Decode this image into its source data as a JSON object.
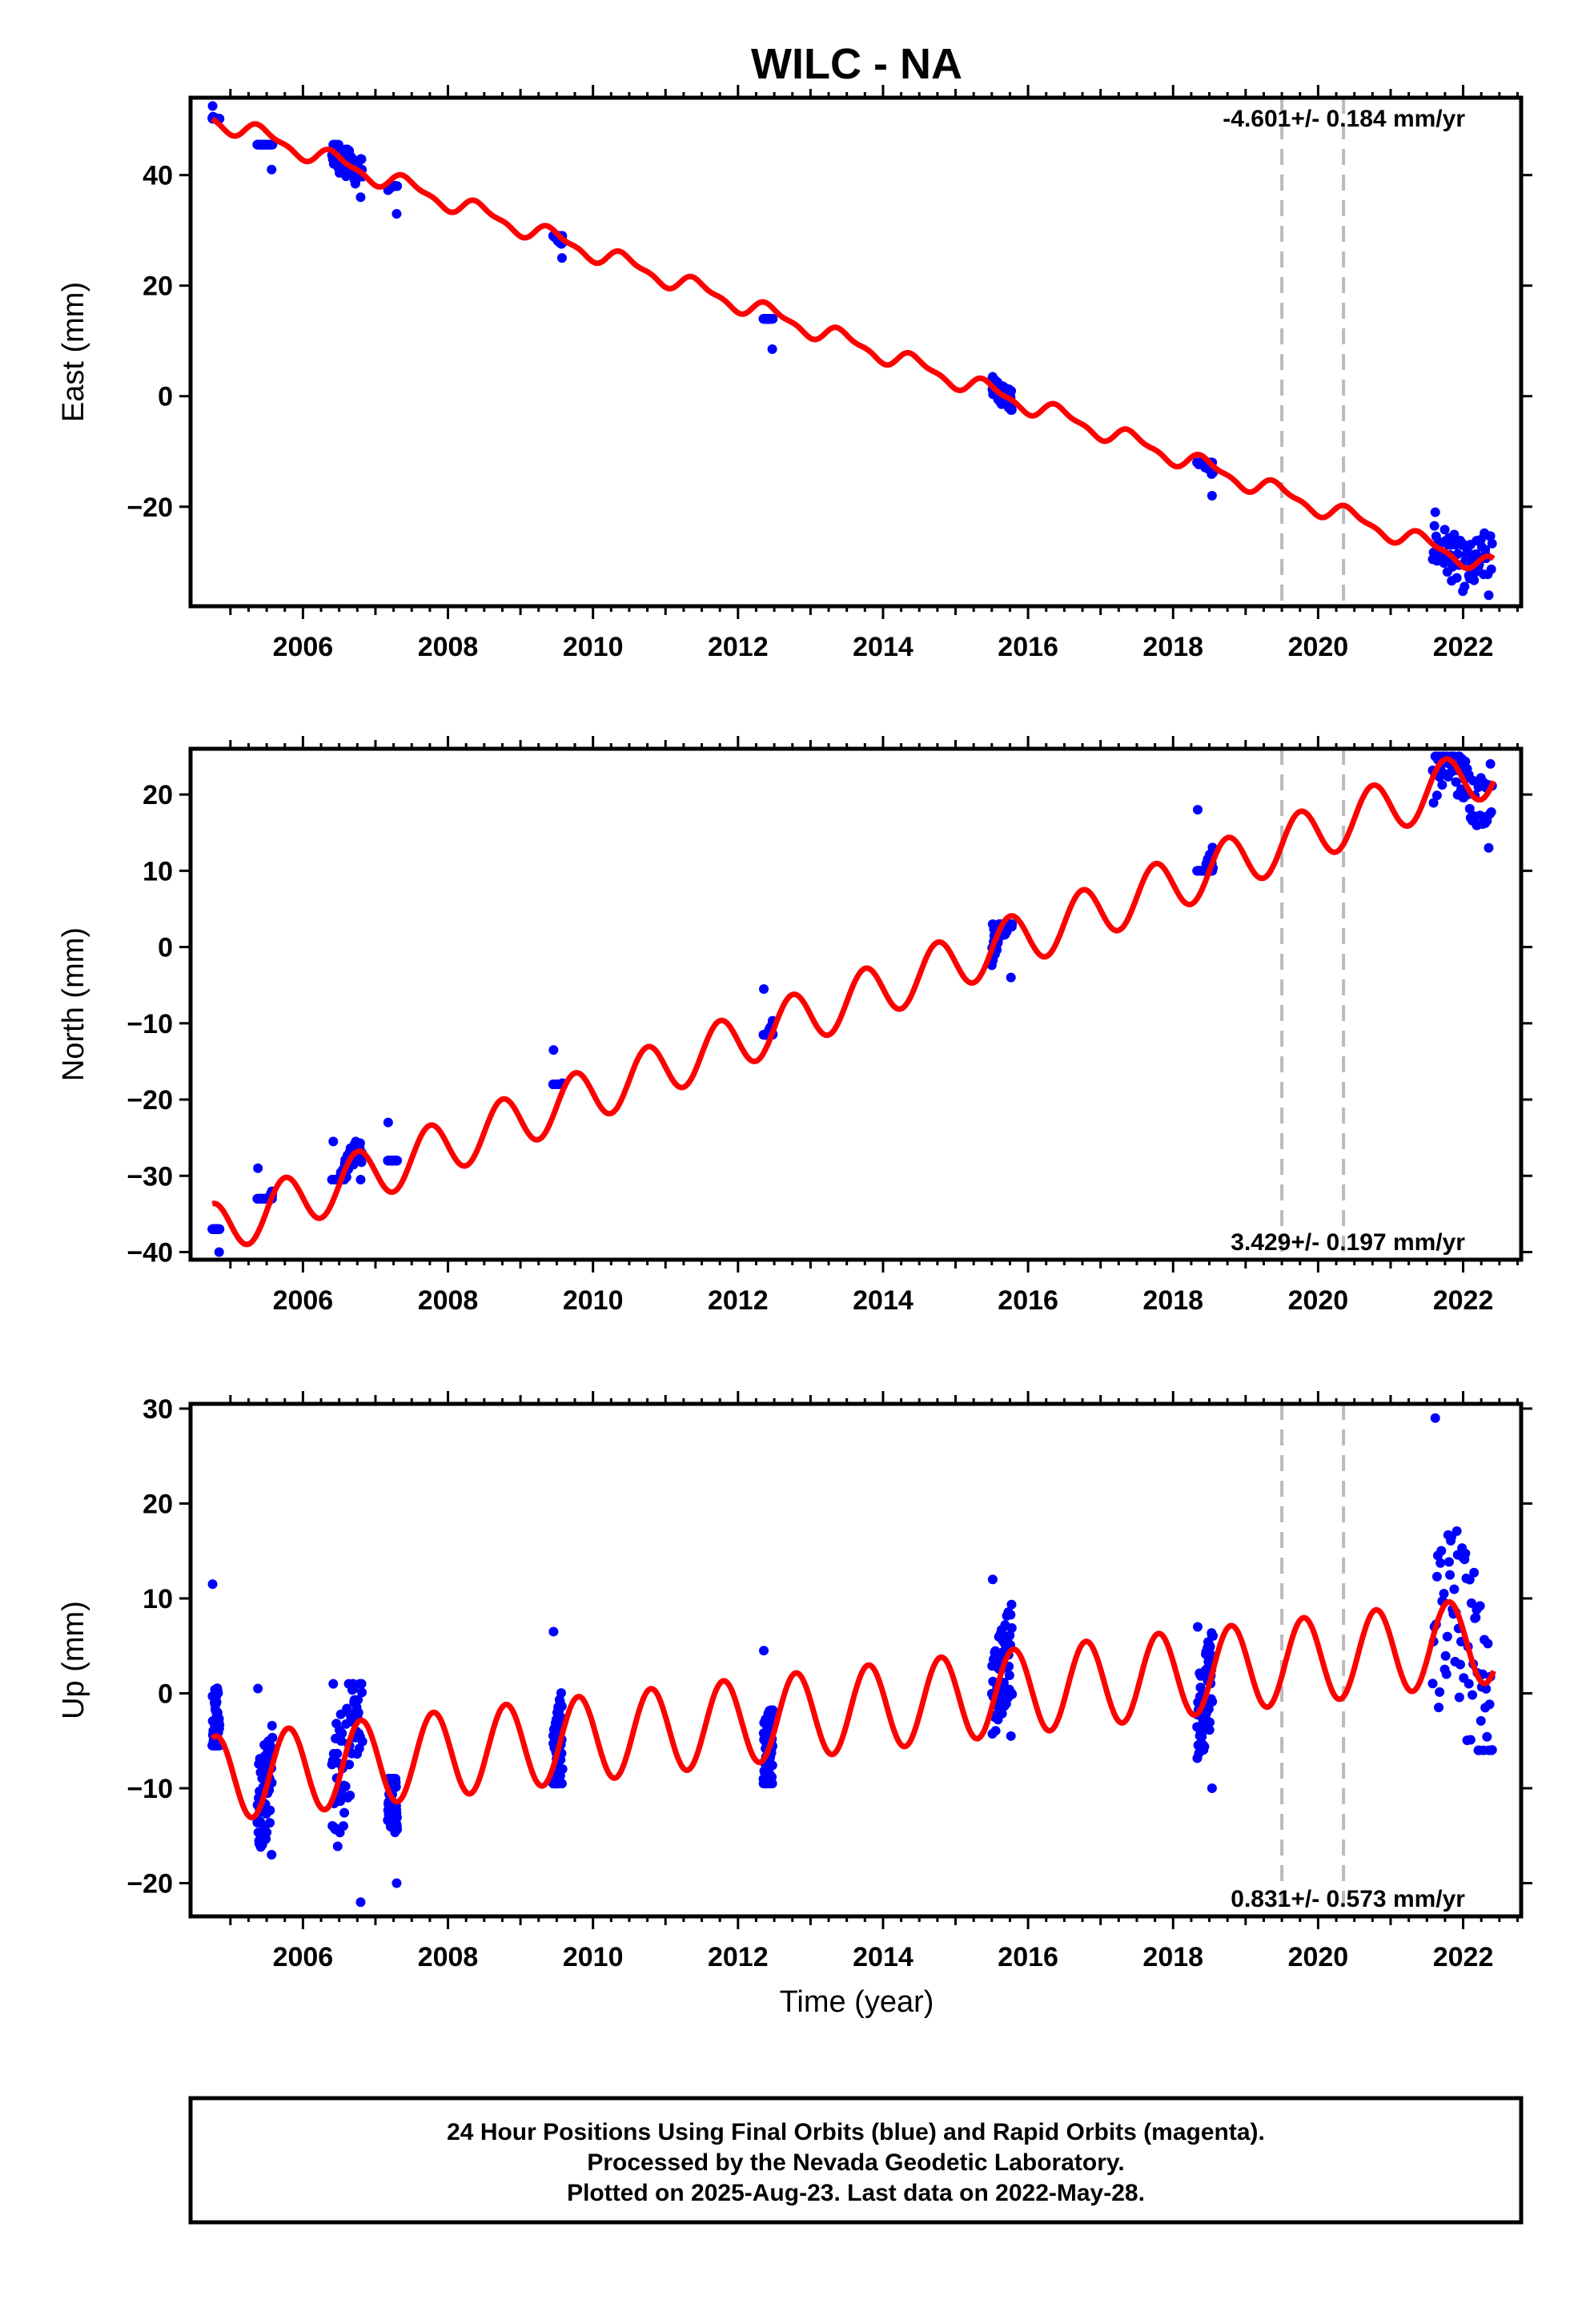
{
  "title": "WILC - NA",
  "x_axis_title": "Time (year)",
  "x_ticks": [
    2006,
    2008,
    2010,
    2012,
    2014,
    2016,
    2018,
    2020,
    2022
  ],
  "xlim": [
    2004.45,
    2022.8
  ],
  "footer": {
    "line1": "24 Hour Positions Using Final Orbits (blue) and Rapid Orbits (magenta).",
    "line2": "Processed by the Nevada Geodetic Laboratory.",
    "line3": "Plotted on 2025-Aug-23. Last data on 2022-May-28."
  },
  "colors": {
    "data": "#0000ff",
    "model": "#ff0000",
    "step": "#bbbbbb",
    "axis": "#000000"
  },
  "chart_data": [
    {
      "type": "scatter",
      "name": "east",
      "ylabel": "East (mm)",
      "rate_label": "-4.601+/- 0.184 mm/yr",
      "rate_position": "top-right",
      "ylim": [
        -38,
        54
      ],
      "yticks": [
        -20,
        0,
        20,
        40
      ],
      "xlim": [
        2004.45,
        2022.8
      ],
      "grid": false,
      "rate_mm_yr": -4.601,
      "offset_mm": 50.0,
      "annual_amplitude_mm": 1.5,
      "annual_phase_year": 0.2,
      "semiannual_amplitude_mm": 0.6,
      "step_epochs": [
        2019.5,
        2020.35
      ],
      "campaigns": [
        {
          "start": 2004.75,
          "end": 2004.85,
          "values": [
            52.5,
            50.2
          ]
        },
        {
          "start": 2005.37,
          "end": 2005.58,
          "values": [
            45.5,
            41.0
          ]
        },
        {
          "start": 2006.4,
          "end": 2006.82,
          "values": [
            45.5,
            36.0
          ]
        },
        {
          "start": 2007.17,
          "end": 2007.3,
          "values": [
            38.0,
            33.0
          ]
        },
        {
          "start": 2009.45,
          "end": 2009.58,
          "values": [
            29.0,
            25.0
          ]
        },
        {
          "start": 2012.35,
          "end": 2012.48,
          "values": [
            14.0,
            8.5
          ]
        },
        {
          "start": 2015.5,
          "end": 2015.78,
          "values": [
            3.5,
            -2.5
          ]
        },
        {
          "start": 2018.33,
          "end": 2018.55,
          "values": [
            -12.0,
            -18.0
          ]
        },
        {
          "start": 2021.58,
          "end": 2022.4,
          "values": [
            -21.0,
            -36.0
          ]
        }
      ]
    },
    {
      "type": "scatter",
      "name": "north",
      "ylabel": "North (mm)",
      "rate_label": "3.429+/- 0.197 mm/yr",
      "rate_position": "bottom-right",
      "ylim": [
        -41,
        26
      ],
      "yticks": [
        -40,
        -30,
        -20,
        -10,
        0,
        10,
        20
      ],
      "xlim": [
        2004.45,
        2022.8
      ],
      "grid": false,
      "rate_mm_yr": 3.429,
      "offset_mm": -37.0,
      "annual_amplitude_mm": 3.5,
      "annual_phase_year": 0.5,
      "semiannual_amplitude_mm": 0.0,
      "step_epochs": [
        2019.5,
        2020.35
      ],
      "campaigns": [
        {
          "start": 2004.75,
          "end": 2004.85,
          "values": [
            -37.0,
            -40.0
          ]
        },
        {
          "start": 2005.37,
          "end": 2005.58,
          "values": [
            -29.0,
            -33.0
          ]
        },
        {
          "start": 2006.4,
          "end": 2006.82,
          "values": [
            -25.5,
            -30.5
          ]
        },
        {
          "start": 2007.17,
          "end": 2007.3,
          "values": [
            -23.0,
            -28.0
          ]
        },
        {
          "start": 2009.45,
          "end": 2009.58,
          "values": [
            -13.5,
            -18.0
          ]
        },
        {
          "start": 2012.35,
          "end": 2012.48,
          "values": [
            -5.5,
            -11.5
          ]
        },
        {
          "start": 2015.5,
          "end": 2015.78,
          "values": [
            3.0,
            -4.0
          ]
        },
        {
          "start": 2018.33,
          "end": 2018.55,
          "values": [
            18.0,
            10.0
          ]
        },
        {
          "start": 2021.58,
          "end": 2022.4,
          "values": [
            25.0,
            13.0
          ]
        }
      ]
    },
    {
      "type": "scatter",
      "name": "up",
      "ylabel": "Up (mm)",
      "rate_label": "0.831+/- 0.573 mm/yr",
      "rate_position": "bottom-right",
      "ylim": [
        -23.5,
        30.5
      ],
      "yticks": [
        -20,
        -10,
        0,
        10,
        20,
        30
      ],
      "xlim": [
        2004.45,
        2022.8
      ],
      "grid": false,
      "rate_mm_yr": 0.831,
      "offset_mm": -9.0,
      "annual_amplitude_mm": 4.5,
      "annual_phase_year": 0.55,
      "semiannual_amplitude_mm": 0.0,
      "step_epochs": [
        2019.5,
        2020.35
      ],
      "campaigns": [
        {
          "start": 2004.75,
          "end": 2004.85,
          "values": [
            11.5,
            -5.5
          ]
        },
        {
          "start": 2005.37,
          "end": 2005.58,
          "values": [
            0.5,
            -17.0
          ]
        },
        {
          "start": 2006.4,
          "end": 2006.82,
          "values": [
            1.0,
            -22.0
          ]
        },
        {
          "start": 2007.17,
          "end": 2007.3,
          "values": [
            -9.0,
            -20.0
          ]
        },
        {
          "start": 2009.45,
          "end": 2009.58,
          "values": [
            6.5,
            -9.5
          ]
        },
        {
          "start": 2012.35,
          "end": 2012.48,
          "values": [
            4.5,
            -9.5
          ]
        },
        {
          "start": 2015.5,
          "end": 2015.78,
          "values": [
            12.0,
            -4.5
          ]
        },
        {
          "start": 2018.33,
          "end": 2018.55,
          "values": [
            7.0,
            -10.0
          ]
        },
        {
          "start": 2021.58,
          "end": 2022.4,
          "values": [
            29.0,
            -6.0
          ]
        }
      ]
    }
  ]
}
